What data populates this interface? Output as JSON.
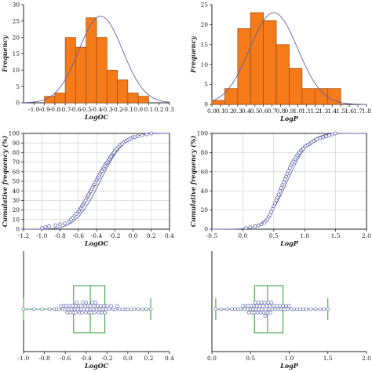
{
  "chart_data": [
    {
      "panel": "top-left",
      "type": "bar",
      "xlabel": "LogOC",
      "ylabel": "Frequency",
      "xlim": [
        -1.1,
        0.3
      ],
      "ylim": [
        0,
        30
      ],
      "xticks": [
        "-1.0",
        "-0.9",
        "-0.8",
        "-0.7",
        "-0.6",
        "-0.5",
        "-0.4",
        "-0.3",
        "-0.2",
        "-0.1",
        "0.0",
        "0.1",
        "0.2",
        "0.3"
      ],
      "yticks": [
        "0",
        "5",
        "10",
        "15",
        "20",
        "25",
        "30"
      ],
      "bins": [
        [
          -1.0,
          -0.9
        ],
        [
          -0.9,
          -0.8
        ],
        [
          -0.8,
          -0.7
        ],
        [
          -0.7,
          -0.6
        ],
        [
          -0.6,
          -0.5
        ],
        [
          -0.5,
          -0.4
        ],
        [
          -0.4,
          -0.3
        ],
        [
          -0.3,
          -0.2
        ],
        [
          -0.2,
          -0.1
        ],
        [
          -0.1,
          0.0
        ],
        [
          0.0,
          0.1
        ],
        [
          0.1,
          0.2
        ]
      ],
      "values": [
        0,
        2,
        3,
        20,
        17,
        26,
        20,
        10,
        7,
        3,
        2,
        0
      ],
      "fit_curve": {
        "distribution": "normal",
        "mean": -0.36,
        "sd": 0.21,
        "peak": 26.5
      }
    },
    {
      "panel": "top-right",
      "type": "bar",
      "xlabel": "LogP",
      "ylabel": "Frequency",
      "xlim": [
        0.0,
        1.8
      ],
      "ylim": [
        0,
        25
      ],
      "xticks": [
        "0.0",
        "0.1",
        "0.2",
        "0.3",
        "0.4",
        "0.5",
        "0.6",
        "0.7",
        "0.8",
        "0.9",
        "1.0",
        "1.1",
        "1.2",
        "1.3",
        "1.4",
        "1.5",
        "1.6",
        "1.7",
        "1.8"
      ],
      "yticks": [
        "0",
        "5",
        "10",
        "15",
        "20",
        "25"
      ],
      "bins": [
        [
          0.0,
          0.15
        ],
        [
          0.15,
          0.3
        ],
        [
          0.3,
          0.45
        ],
        [
          0.45,
          0.6
        ],
        [
          0.6,
          0.75
        ],
        [
          0.75,
          0.9
        ],
        [
          0.9,
          1.05
        ],
        [
          1.05,
          1.2
        ],
        [
          1.2,
          1.35
        ],
        [
          1.35,
          1.5
        ]
      ],
      "values": [
        1,
        4,
        19,
        23,
        21,
        15,
        9,
        4,
        4,
        4
      ],
      "fit_curve": {
        "distribution": "normal",
        "mean": 0.72,
        "sd": 0.28,
        "peak": 23
      }
    },
    {
      "panel": "middle-left",
      "type": "line",
      "xlabel": "LogOC",
      "ylabel": "Cumulative frequency (%)",
      "xlim": [
        -1.2,
        0.4
      ],
      "ylim": [
        0,
        100
      ],
      "grid": true,
      "xticks": [
        "-1.2",
        "-1.0",
        "-0.8",
        "-0.6",
        "-0.4",
        "-0.2",
        "0.0",
        "0.2",
        "0.4"
      ],
      "yticks": [
        "0",
        "10",
        "20",
        "30",
        "40",
        "50",
        "60",
        "70",
        "80",
        "90",
        "100"
      ],
      "fit_curve": {
        "distribution": "normal",
        "mean": -0.36,
        "sd": 0.21
      },
      "points": {
        "x": [
          -1.0,
          -0.96,
          -0.92,
          -0.85,
          -0.8,
          -0.75,
          -0.7,
          -0.68,
          -0.66,
          -0.64,
          -0.62,
          -0.6,
          -0.59,
          -0.58,
          -0.57,
          -0.56,
          -0.55,
          -0.54,
          -0.53,
          -0.52,
          -0.51,
          -0.5,
          -0.49,
          -0.48,
          -0.47,
          -0.46,
          -0.45,
          -0.44,
          -0.43,
          -0.42,
          -0.41,
          -0.4,
          -0.39,
          -0.38,
          -0.37,
          -0.36,
          -0.35,
          -0.34,
          -0.33,
          -0.32,
          -0.31,
          -0.3,
          -0.29,
          -0.28,
          -0.27,
          -0.26,
          -0.25,
          -0.24,
          -0.23,
          -0.22,
          -0.21,
          -0.2,
          -0.18,
          -0.16,
          -0.14,
          -0.12,
          -0.1,
          -0.08,
          -0.06,
          -0.04,
          -0.02,
          0.0,
          0.02,
          0.05,
          0.1,
          0.15,
          0.2
        ],
        "y": [
          1,
          2,
          3,
          4,
          5,
          6,
          8,
          10,
          12,
          14,
          16,
          18,
          19,
          21,
          22,
          24,
          25,
          27,
          28,
          30,
          32,
          34,
          35,
          37,
          39,
          40,
          42,
          44,
          46,
          47,
          49,
          51,
          53,
          54,
          56,
          58,
          60,
          61,
          63,
          64,
          66,
          68,
          69,
          70,
          72,
          73,
          75,
          76,
          78,
          79,
          80,
          82,
          84,
          86,
          88,
          89,
          91,
          92,
          93,
          94,
          95,
          96,
          96,
          97,
          98,
          99,
          100
        ]
      }
    },
    {
      "panel": "middle-right",
      "type": "line",
      "xlabel": "LogP",
      "ylabel": "Cumulative frequency (%)",
      "xlim": [
        -0.5,
        2.0
      ],
      "ylim": [
        0,
        100
      ],
      "grid": true,
      "xticks": [
        "-0.5",
        "0.0",
        "0.5",
        "1.0",
        "1.5",
        "2.0"
      ],
      "yticks": [
        "0",
        "20",
        "40",
        "60",
        "80",
        "100"
      ],
      "fit_curve": {
        "distribution": "normal",
        "mean": 0.72,
        "sd": 0.28
      },
      "points": {
        "x": [
          0.05,
          0.12,
          0.2,
          0.25,
          0.3,
          0.35,
          0.38,
          0.4,
          0.42,
          0.44,
          0.46,
          0.48,
          0.5,
          0.52,
          0.54,
          0.56,
          0.58,
          0.6,
          0.62,
          0.64,
          0.66,
          0.68,
          0.7,
          0.72,
          0.74,
          0.76,
          0.78,
          0.8,
          0.82,
          0.84,
          0.86,
          0.88,
          0.9,
          0.92,
          0.94,
          0.96,
          0.98,
          1.0,
          1.02,
          1.05,
          1.08,
          1.1,
          1.12,
          1.15,
          1.18,
          1.2,
          1.25,
          1.3,
          1.35,
          1.4,
          1.45,
          1.5
        ],
        "y": [
          1,
          2,
          3,
          4,
          5,
          7,
          9,
          11,
          13,
          15,
          18,
          21,
          24,
          27,
          30,
          33,
          36,
          40,
          43,
          46,
          49,
          52,
          55,
          58,
          61,
          64,
          67,
          69,
          71,
          73,
          75,
          77,
          79,
          80,
          82,
          83,
          84,
          86,
          87,
          88,
          89,
          90,
          91,
          92,
          93,
          94,
          95,
          96,
          97,
          98,
          99,
          100
        ]
      }
    },
    {
      "panel": "bottom-left",
      "type": "scatter",
      "subtype": "box-and-dot",
      "xlabel": "LogOC",
      "xlim": [
        -1.0,
        0.4
      ],
      "xticks": [
        "-1.0",
        "-0.8",
        "-0.6",
        "-0.4",
        "-0.2",
        "0.0",
        "0.2",
        "0.4"
      ],
      "box": {
        "whisker_low": -1.0,
        "q1": -0.52,
        "median": -0.36,
        "q3": -0.22,
        "whisker_high": 0.22
      },
      "points": [
        -1.0,
        -0.9,
        -0.82,
        -0.75,
        -0.7,
        -0.68,
        -0.66,
        -0.64,
        -0.62,
        -0.61,
        -0.6,
        -0.59,
        -0.58,
        -0.57,
        -0.56,
        -0.55,
        -0.54,
        -0.53,
        -0.52,
        -0.51,
        -0.5,
        -0.5,
        -0.49,
        -0.48,
        -0.47,
        -0.46,
        -0.45,
        -0.45,
        -0.44,
        -0.43,
        -0.42,
        -0.41,
        -0.4,
        -0.4,
        -0.39,
        -0.38,
        -0.37,
        -0.36,
        -0.36,
        -0.35,
        -0.34,
        -0.33,
        -0.32,
        -0.32,
        -0.31,
        -0.3,
        -0.29,
        -0.28,
        -0.27,
        -0.26,
        -0.25,
        -0.24,
        -0.23,
        -0.22,
        -0.21,
        -0.2,
        -0.18,
        -0.16,
        -0.14,
        -0.12,
        -0.1,
        -0.08,
        -0.05,
        -0.02,
        0.0,
        0.03,
        0.06,
        0.1,
        0.14,
        0.18,
        0.22
      ]
    },
    {
      "panel": "bottom-right",
      "type": "scatter",
      "subtype": "box-and-dot",
      "xlabel": "LogP",
      "xlim": [
        0.0,
        2.0
      ],
      "xticks": [
        "0.0",
        "0.5",
        "1.0",
        "1.5",
        "2.0"
      ],
      "box": {
        "whisker_low": 0.05,
        "q1": 0.55,
        "median": 0.72,
        "q3": 0.92,
        "whisker_high": 1.5
      },
      "points": [
        0.05,
        0.12,
        0.2,
        0.26,
        0.3,
        0.34,
        0.37,
        0.4,
        0.42,
        0.44,
        0.46,
        0.47,
        0.48,
        0.5,
        0.51,
        0.52,
        0.53,
        0.54,
        0.55,
        0.56,
        0.57,
        0.58,
        0.59,
        0.6,
        0.61,
        0.62,
        0.63,
        0.64,
        0.65,
        0.66,
        0.67,
        0.68,
        0.69,
        0.7,
        0.71,
        0.72,
        0.73,
        0.74,
        0.75,
        0.76,
        0.77,
        0.78,
        0.8,
        0.82,
        0.84,
        0.86,
        0.88,
        0.9,
        0.92,
        0.94,
        0.96,
        0.98,
        1.0,
        1.03,
        1.06,
        1.1,
        1.14,
        1.18,
        1.22,
        1.28,
        1.34,
        1.4,
        1.45,
        1.5
      ]
    }
  ]
}
